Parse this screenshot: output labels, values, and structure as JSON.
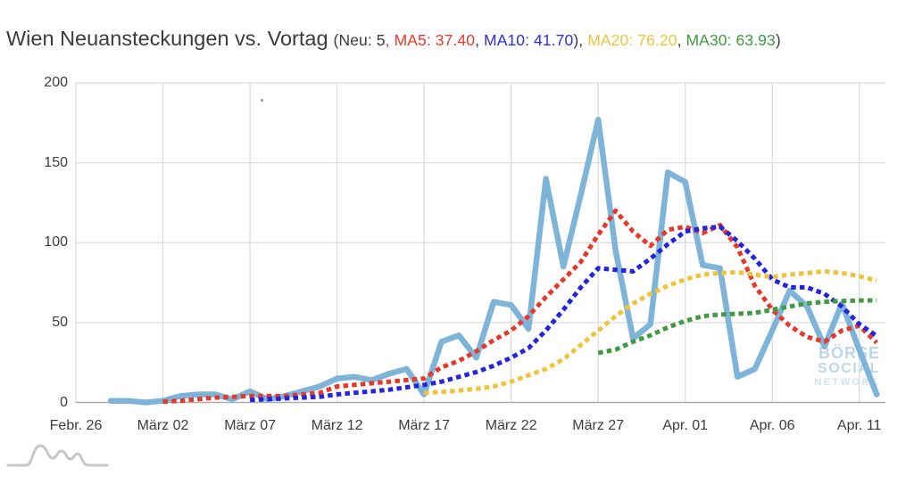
{
  "header": {
    "title": "Wien Neuansteckungen vs. Vortag",
    "legend_segments": [
      {
        "text": "(Neu: 5",
        "color": "#3a3a3a"
      },
      {
        "text": ", MA5: 37.40",
        "color": "#e83a2b"
      },
      {
        "text": ", ",
        "color": "#3a3a3a"
      },
      {
        "text": "MA10: 41.70",
        "color": "#2c2ce0"
      },
      {
        "text": "), ",
        "color": "#3a3a3a"
      },
      {
        "text": "MA20: 76.20",
        "color": "#eec43d"
      },
      {
        "text": ", ",
        "color": "#3a3a3a"
      },
      {
        "text": "MA30: 63.93",
        "color": "#3f9b41"
      },
      {
        "text": ")",
        "color": "#3a3a3a"
      }
    ]
  },
  "watermark": {
    "lines": [
      "BÖRSE",
      "SOCIAL",
      "NETWORK"
    ]
  },
  "colors": {
    "neu_line": "#7fb4d9",
    "ma5_line": "#e5392c",
    "ma10_line": "#2424de",
    "ma20_line": "#eec43d",
    "ma30_line": "#3f9b41",
    "gridline": "#dcdcdc",
    "axis_baseline": "#ababab",
    "text": "#3c3c3c"
  },
  "chart_data": {
    "type": "line",
    "title": "Wien Neuansteckungen vs. Vortag",
    "subtitle": "(Neu: 5, MA5: 37.40, MA10: 41.70), MA20: 76.20, MA30: 63.93)",
    "x_axis": {
      "start_label": "Febr. 26",
      "step": "1 day",
      "tick_days": [
        0,
        5,
        10,
        15,
        20,
        25,
        30,
        35,
        40,
        45
      ],
      "tick_labels": [
        "Febr. 26",
        "März 02",
        "März 07",
        "März 12",
        "März 17",
        "März 22",
        "März 27",
        "Apr. 01",
        "Apr. 06",
        "Apr. 11"
      ],
      "total_days": 46.5
    },
    "y_axis": {
      "ticks": [
        0,
        50,
        100,
        150,
        200
      ],
      "ylim": [
        0,
        200
      ]
    },
    "grid": true,
    "legend_position": "in-title",
    "series": [
      {
        "name": "Neu",
        "color": "#7fb4d9",
        "style": "solid",
        "last_value": 5,
        "values": [
          null,
          null,
          1,
          1,
          0,
          1,
          4,
          5,
          5,
          2,
          7,
          2,
          4,
          7,
          10,
          15,
          16,
          14,
          18,
          21,
          5,
          38,
          42,
          28,
          63,
          61,
          46,
          140,
          85,
          130,
          177,
          95,
          40,
          49,
          144,
          138,
          86,
          84,
          16,
          21,
          45,
          70,
          60,
          35,
          62,
          33,
          5
        ]
      },
      {
        "name": "MA5",
        "color": "#e5392c",
        "style": "dotted",
        "last_value": 37.4,
        "values": [
          null,
          null,
          null,
          null,
          null,
          0.5,
          1,
          2,
          3,
          3.5,
          4,
          4,
          4,
          5,
          6,
          10,
          11,
          12,
          13,
          14,
          15,
          22,
          26,
          32,
          39,
          45,
          54,
          66,
          77,
          88,
          105,
          120,
          107,
          98,
          108,
          110,
          106,
          111,
          97,
          73,
          58,
          48,
          41,
          38,
          45,
          48,
          37.4
        ]
      },
      {
        "name": "MA10",
        "color": "#2424de",
        "style": "dotted",
        "last_value": 41.7,
        "values": [
          null,
          null,
          null,
          null,
          null,
          null,
          null,
          null,
          null,
          null,
          1.5,
          2,
          2.5,
          3,
          3.5,
          5,
          6,
          7,
          8,
          9.5,
          11,
          13,
          16,
          19,
          23,
          28,
          34,
          45,
          58,
          72,
          84,
          83,
          82,
          90,
          99,
          107,
          109,
          110,
          101,
          90,
          77,
          72,
          72,
          68,
          60,
          49,
          41.7
        ]
      },
      {
        "name": "MA20",
        "color": "#eec43d",
        "style": "dotted",
        "last_value": 76.2,
        "values": [
          null,
          null,
          null,
          null,
          null,
          null,
          null,
          null,
          null,
          null,
          null,
          null,
          null,
          null,
          null,
          null,
          null,
          null,
          null,
          null,
          6,
          6.5,
          7.5,
          8.5,
          10,
          13,
          17,
          21,
          27,
          36,
          45,
          54,
          62,
          68,
          73,
          77,
          80,
          81,
          81.5,
          80,
          78.5,
          80,
          81,
          82,
          81,
          79,
          76.2
        ]
      },
      {
        "name": "MA30",
        "color": "#3f9b41",
        "style": "dotted",
        "last_value": 63.93,
        "values": [
          null,
          null,
          null,
          null,
          null,
          null,
          null,
          null,
          null,
          null,
          null,
          null,
          null,
          null,
          null,
          null,
          null,
          null,
          null,
          null,
          null,
          null,
          null,
          null,
          null,
          null,
          null,
          null,
          null,
          null,
          31,
          33,
          38,
          42,
          47,
          51,
          54,
          55,
          55.5,
          56,
          58,
          60,
          62,
          63,
          63.5,
          63.8,
          63.93
        ]
      }
    ]
  }
}
